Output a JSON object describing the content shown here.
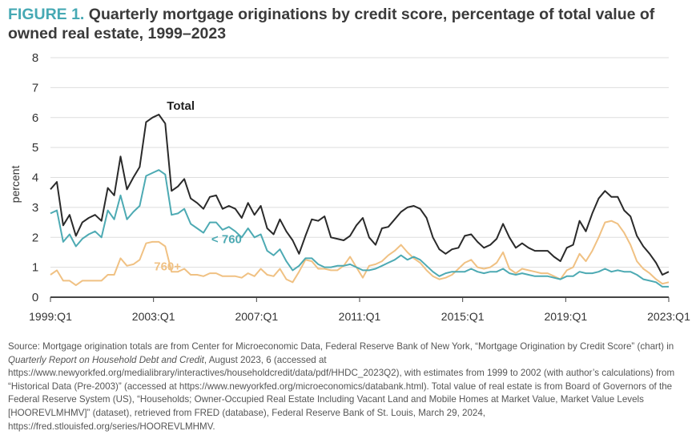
{
  "title": {
    "label": "FIGURE 1.",
    "text": "Quarterly mortgage originations by credit score, percentage of total value of owned real estate, 1999–2023"
  },
  "colors": {
    "title_label": "#46a9b4",
    "total": "#2a2a2a",
    "under760": "#4daab3",
    "over760": "#f0c183",
    "grid": "#dddddd",
    "baseline": "#444444"
  },
  "source": {
    "part1": "Source: Mortgage origination totals are from Center for Microeconomic Data, Federal Reserve Bank of New York, “Mortgage Origination by Credit Score” (chart) in ",
    "italic": "Quarterly Report on Household Debt and Credit",
    "part2": ", August 2023, 6 (accessed at https://www.newyorkfed.org/medialibrary/interactives/householdcredit/data/pdf/HHDC_2023Q2), with estimates from 1999 to 2002 (with author’s calculations) from “Historical Data (Pre-2003)” (accessed at https://www.newyorkfed.org/microeconomics/databank.html). Total value of real estate is from Board of Governors of the Federal Reserve System (US), “Households; Owner-Occupied Real Estate Including Vacant Land and Mobile Homes at Market Value, Market Value Levels [HOOREVLMHMV]” (dataset), retrieved from FRED (database), Federal Reserve Bank of St. Louis, March 29, 2024, https://fred.stlouisfed.org/series/HOOREVLMHMV."
  },
  "chart_data": {
    "type": "line",
    "ylabel": "percent",
    "xlabel": "",
    "ylim": [
      0,
      8
    ],
    "yticks": [
      0,
      1,
      2,
      3,
      4,
      5,
      6,
      7,
      8
    ],
    "x_start": "1999:Q1",
    "x_end": "2023:Q1",
    "xticks": [
      "1999:Q1",
      "2003:Q1",
      "2007:Q1",
      "2011:Q1",
      "2015:Q1",
      "2019:Q1",
      "2023:Q1"
    ],
    "grid": "horizontal",
    "series": [
      {
        "name": "Total",
        "color": "#2a2a2a",
        "values": [
          3.6,
          3.85,
          2.4,
          2.75,
          2.05,
          2.5,
          2.65,
          2.75,
          2.55,
          3.65,
          3.4,
          4.7,
          3.6,
          4.0,
          4.35,
          5.85,
          6.0,
          6.1,
          5.8,
          3.55,
          3.7,
          3.95,
          3.3,
          3.15,
          2.95,
          3.35,
          3.4,
          2.95,
          3.05,
          2.95,
          2.65,
          3.15,
          2.75,
          3.05,
          2.3,
          2.1,
          2.6,
          2.2,
          1.9,
          1.45,
          2.05,
          2.6,
          2.55,
          2.7,
          2.0,
          1.95,
          1.9,
          2.05,
          2.4,
          2.65,
          2.0,
          1.75,
          2.3,
          2.35,
          2.6,
          2.85,
          3.0,
          3.05,
          2.95,
          2.65,
          2.0,
          1.6,
          1.45,
          1.6,
          1.65,
          2.05,
          2.1,
          1.85,
          1.65,
          1.75,
          1.95,
          2.45,
          2.0,
          1.65,
          1.8,
          1.65,
          1.55,
          1.55,
          1.55,
          1.35,
          1.2,
          1.65,
          1.75,
          2.55,
          2.2,
          2.8,
          3.3,
          3.55,
          3.35,
          3.35,
          2.9,
          2.7,
          2.05,
          1.7,
          1.45,
          1.15,
          0.75,
          0.85
        ]
      },
      {
        "name": "< 760",
        "color": "#4daab3",
        "values": [
          2.8,
          2.9,
          1.85,
          2.1,
          1.7,
          1.95,
          2.1,
          2.2,
          2.0,
          2.9,
          2.6,
          3.4,
          2.6,
          2.85,
          3.05,
          4.05,
          4.15,
          4.25,
          4.1,
          2.75,
          2.8,
          2.95,
          2.45,
          2.3,
          2.15,
          2.5,
          2.5,
          2.25,
          2.35,
          2.2,
          2.0,
          2.3,
          2.0,
          2.1,
          1.55,
          1.4,
          1.6,
          1.2,
          0.9,
          1.05,
          1.3,
          1.3,
          1.1,
          1.0,
          1.0,
          1.05,
          1.05,
          1.1,
          1.0,
          0.9,
          0.9,
          0.95,
          1.05,
          1.15,
          1.25,
          1.4,
          1.25,
          1.35,
          1.25,
          1.05,
          0.85,
          0.7,
          0.8,
          0.85,
          0.85,
          0.85,
          0.95,
          0.85,
          0.8,
          0.85,
          0.85,
          0.95,
          0.8,
          0.75,
          0.8,
          0.75,
          0.7,
          0.7,
          0.7,
          0.65,
          0.6,
          0.7,
          0.7,
          0.85,
          0.8,
          0.8,
          0.85,
          0.95,
          0.85,
          0.9,
          0.85,
          0.85,
          0.75,
          0.6,
          0.55,
          0.5,
          0.35,
          0.35
        ]
      },
      {
        "name": "760+",
        "color": "#f0c183",
        "values": [
          0.75,
          0.9,
          0.55,
          0.55,
          0.4,
          0.55,
          0.55,
          0.55,
          0.55,
          0.75,
          0.75,
          1.3,
          1.05,
          1.1,
          1.25,
          1.8,
          1.85,
          1.85,
          1.7,
          0.85,
          0.85,
          0.95,
          0.75,
          0.75,
          0.7,
          0.8,
          0.8,
          0.7,
          0.7,
          0.7,
          0.65,
          0.8,
          0.7,
          0.95,
          0.75,
          0.7,
          0.95,
          0.6,
          0.5,
          0.85,
          1.25,
          1.2,
          0.95,
          0.95,
          0.9,
          0.9,
          1.05,
          1.35,
          1.0,
          0.65,
          1.05,
          1.1,
          1.2,
          1.4,
          1.55,
          1.75,
          1.5,
          1.3,
          1.15,
          0.9,
          0.7,
          0.6,
          0.65,
          0.75,
          0.95,
          1.15,
          1.25,
          1.0,
          0.95,
          1.0,
          1.15,
          1.5,
          0.95,
          0.8,
          0.95,
          0.9,
          0.85,
          0.8,
          0.8,
          0.7,
          0.6,
          0.9,
          1.0,
          1.45,
          1.2,
          1.55,
          2.0,
          2.5,
          2.55,
          2.45,
          2.15,
          1.75,
          1.2,
          0.95,
          0.8,
          0.6,
          0.45,
          0.5
        ]
      }
    ],
    "annotations": [
      {
        "text": "Total",
        "series": "Total"
      },
      {
        "text": "< 760",
        "series": "< 760"
      },
      {
        "text": "760+",
        "series": "760+"
      }
    ]
  }
}
